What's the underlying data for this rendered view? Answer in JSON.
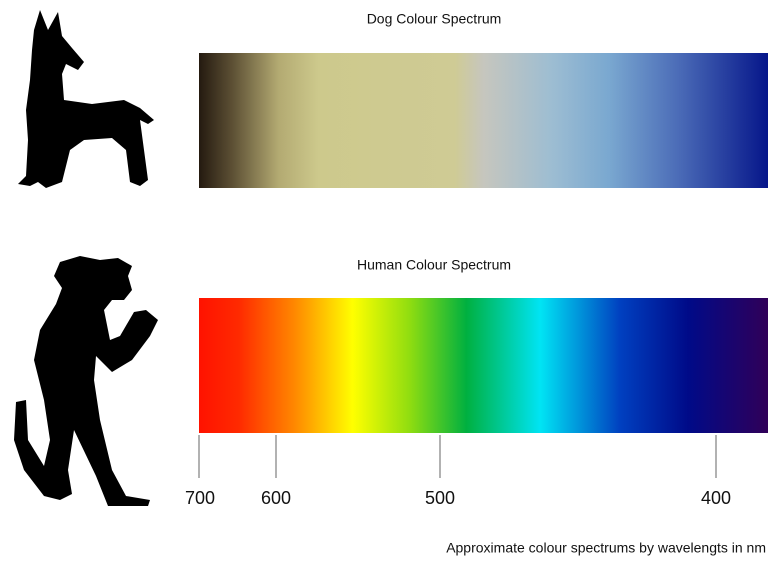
{
  "dog_spectrum": {
    "title": "Dog Colour Spectrum"
  },
  "human_spectrum": {
    "title": "Human Colour Spectrum"
  },
  "axis": {
    "ticks": [
      700,
      600,
      500,
      400
    ]
  },
  "caption": "Approximate colour spectrums by wavelengts in nm"
}
